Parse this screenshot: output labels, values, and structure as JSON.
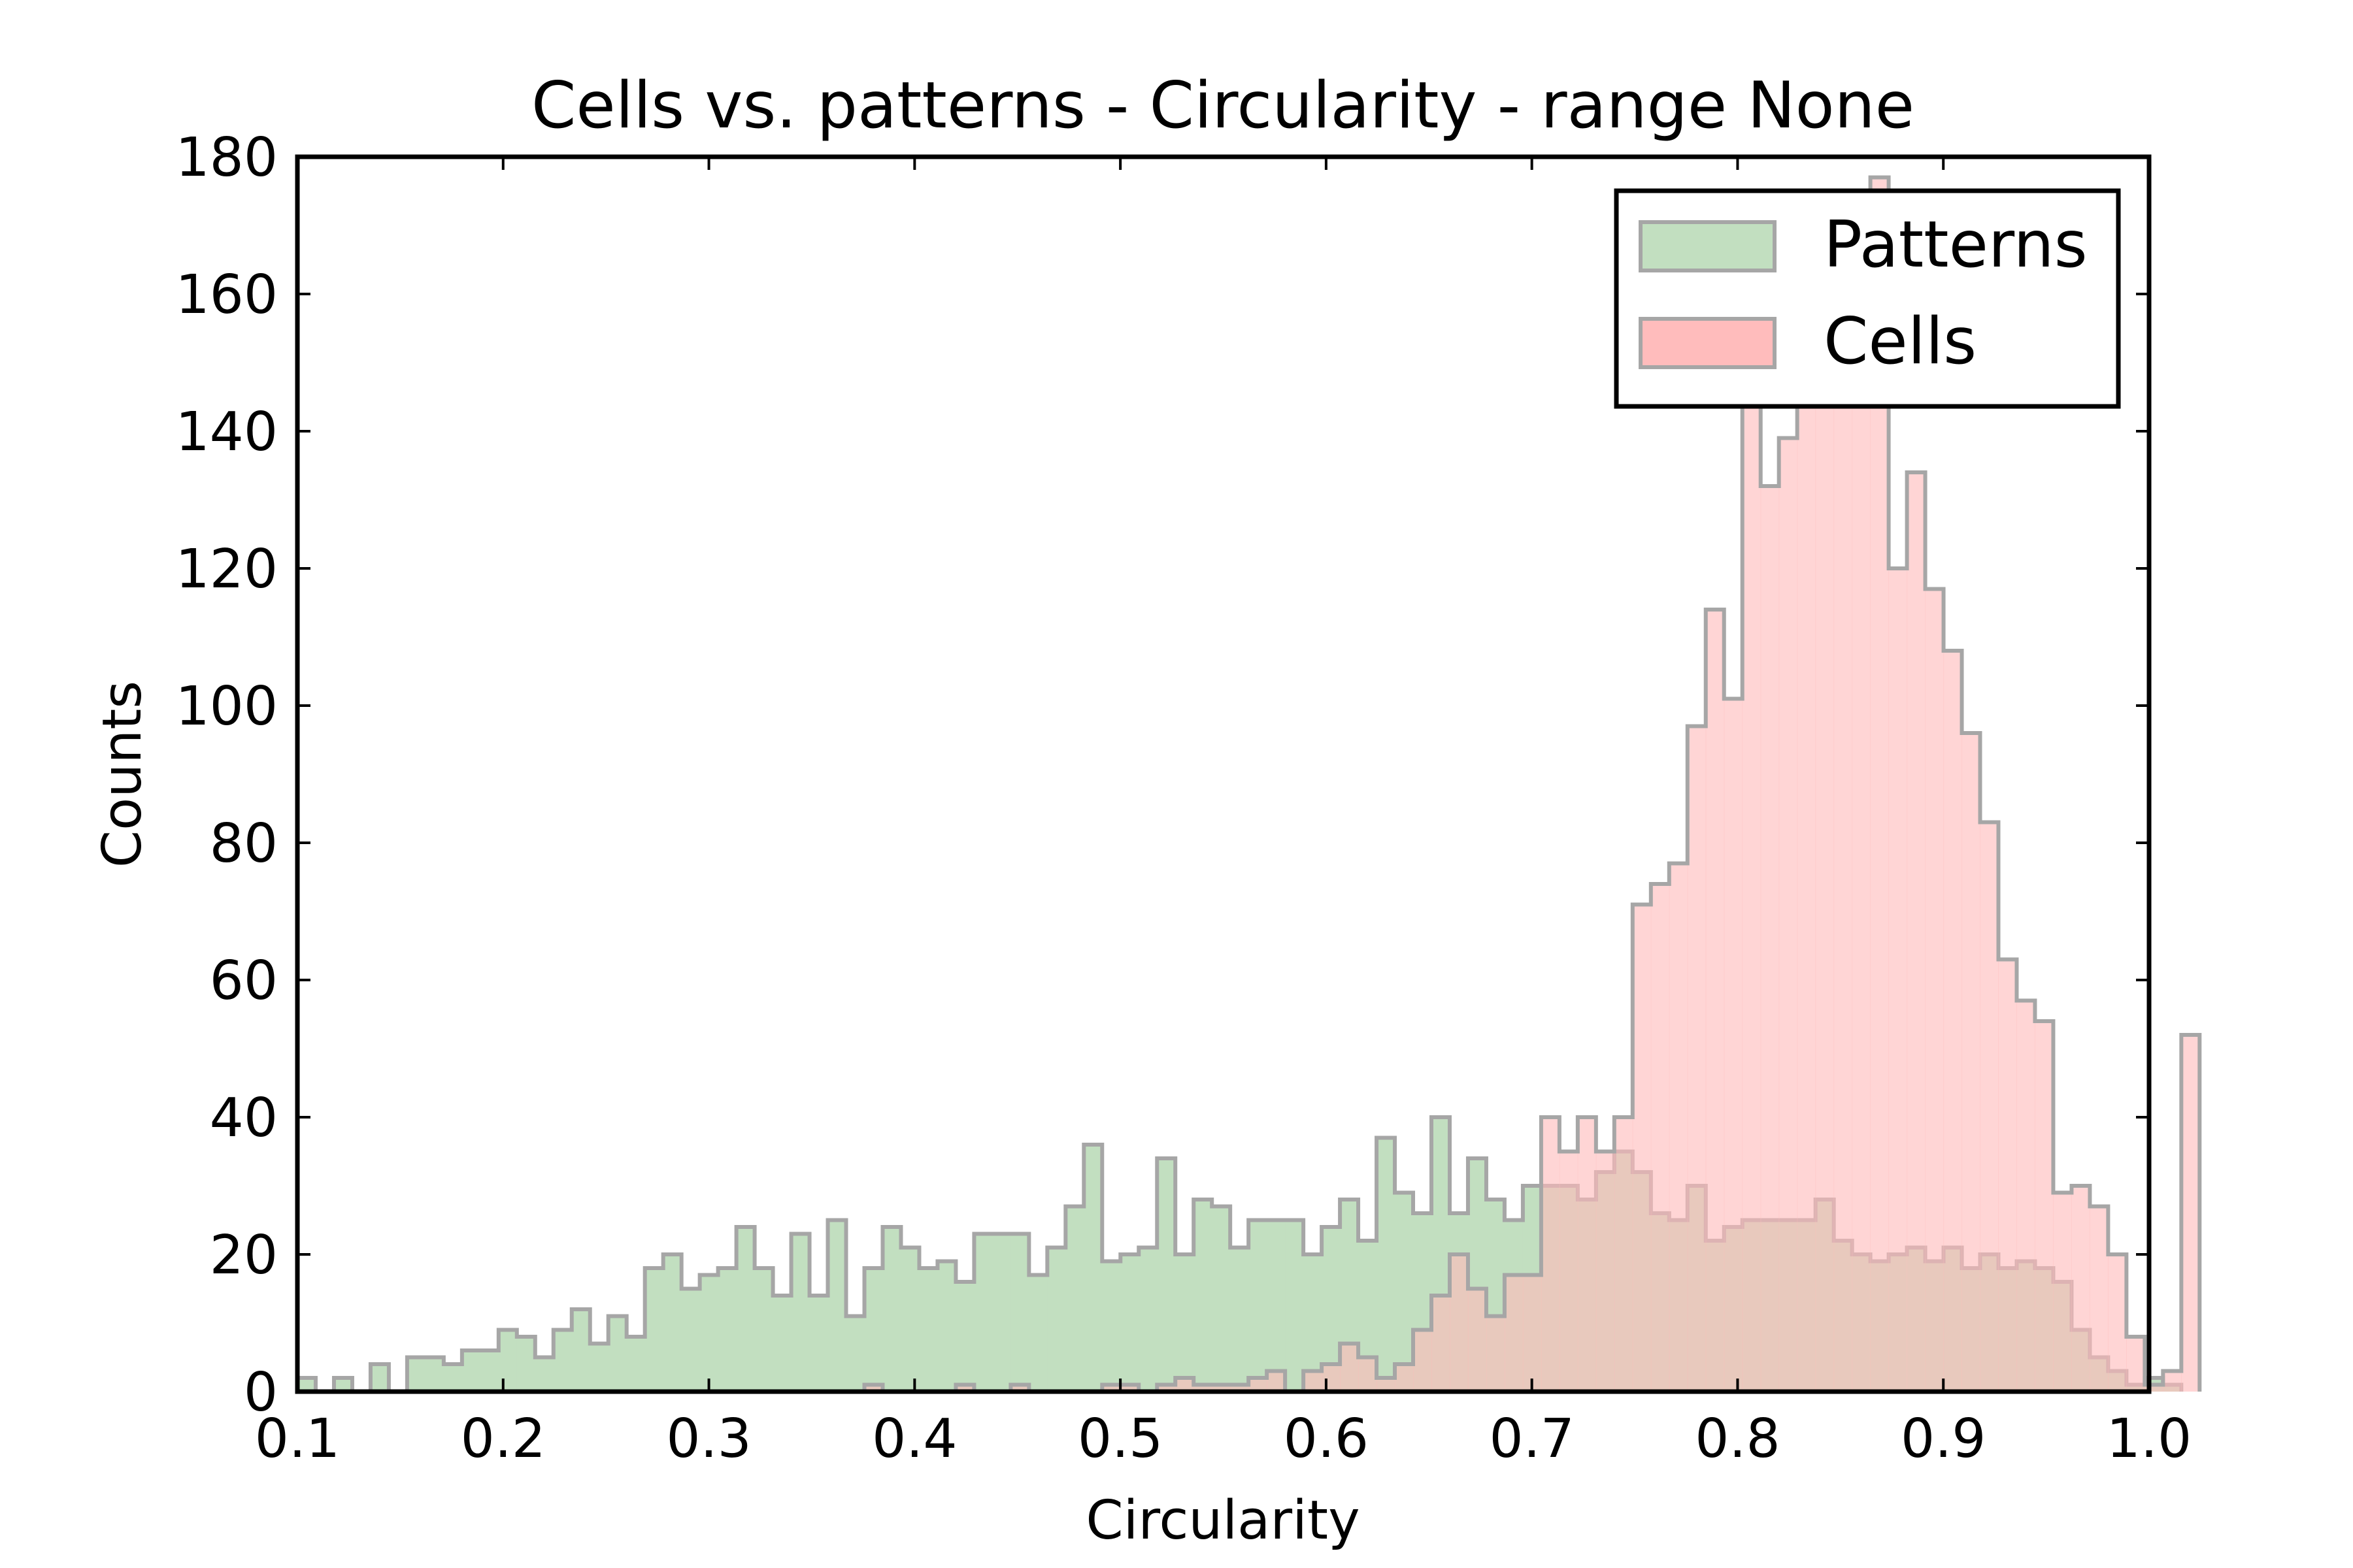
{
  "chart_data": {
    "type": "histogram",
    "title": "Cells vs. patterns - Circularity - range None",
    "xlabel": "Circularity",
    "ylabel": "Counts",
    "xlim": [
      0.1,
      1.0
    ],
    "ylim": [
      0,
      180
    ],
    "xticks": [
      "0.1",
      "0.2",
      "0.3",
      "0.4",
      "0.5",
      "0.6",
      "0.7",
      "0.8",
      "0.9",
      "1.0"
    ],
    "yticks": [
      "0",
      "20",
      "40",
      "60",
      "80",
      "100",
      "120",
      "140",
      "160",
      "180"
    ],
    "legend_position": "top-right",
    "bin_start": 0.1,
    "bin_width": 0.00889,
    "series": [
      {
        "name": "Patterns",
        "color": "#c2dfc0",
        "edge_color": "#8fb88c",
        "values": [
          2,
          0,
          2,
          0,
          4,
          0,
          5,
          5,
          4,
          6,
          6,
          9,
          8,
          5,
          9,
          12,
          7,
          11,
          8,
          18,
          20,
          15,
          17,
          18,
          24,
          18,
          14,
          23,
          14,
          25,
          11,
          18,
          24,
          21,
          18,
          19,
          16,
          23,
          23,
          23,
          17,
          21,
          27,
          36,
          19,
          20,
          21,
          34,
          20,
          28,
          27,
          21,
          25,
          25,
          25,
          20,
          24,
          28,
          22,
          37,
          29,
          26,
          40,
          26,
          34,
          28,
          25,
          30,
          30,
          30,
          28,
          32,
          35,
          32,
          26,
          25,
          30,
          22,
          24,
          25,
          25,
          25,
          25,
          28,
          22,
          20,
          19,
          20,
          21,
          19,
          21,
          18,
          20,
          18,
          19,
          18,
          16,
          9,
          5,
          3,
          1,
          2,
          1
        ]
      },
      {
        "name": "Cells",
        "color": "#ffbcbc",
        "edge_color": "#e08a8a",
        "values": [
          0,
          0,
          0,
          0,
          0,
          0,
          0,
          0,
          0,
          0,
          0,
          0,
          0,
          0,
          0,
          0,
          0,
          0,
          0,
          0,
          0,
          0,
          0,
          0,
          0,
          0,
          0,
          0,
          0,
          0,
          0,
          1,
          0,
          0,
          0,
          0,
          1,
          0,
          0,
          1,
          0,
          0,
          0,
          0,
          1,
          1,
          0,
          1,
          2,
          1,
          1,
          1,
          2,
          3,
          0,
          3,
          4,
          7,
          5,
          2,
          4,
          9,
          14,
          20,
          15,
          11,
          17,
          17,
          40,
          35,
          40,
          35,
          40,
          71,
          74,
          77,
          97,
          114,
          101,
          154,
          132,
          139,
          151,
          155,
          163,
          158,
          177,
          120,
          134,
          117,
          108,
          96,
          83,
          63,
          57,
          54,
          29,
          30,
          27,
          20,
          8,
          1,
          3,
          52
        ]
      }
    ]
  }
}
